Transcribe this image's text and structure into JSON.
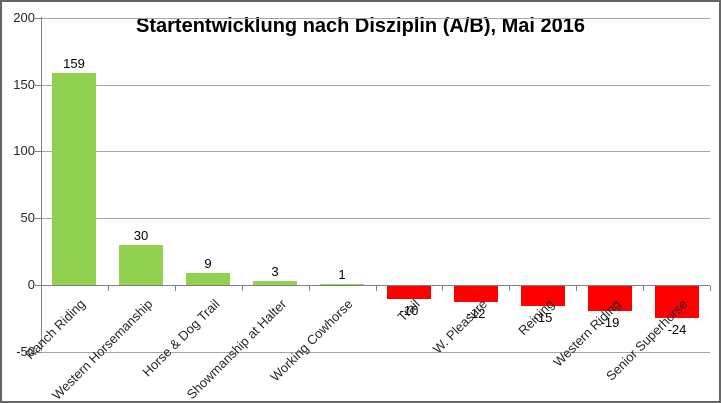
{
  "chart_data": {
    "type": "bar",
    "title": "Startentwicklung nach Disziplin (A/B), Mai 2016",
    "categories": [
      "Ranch Riding",
      "Western Horsemanship",
      "Horse & Dog Trail",
      "Showmanship at Halter",
      "Working Cowhorse",
      "Trail",
      "W. Pleasure",
      "Reining",
      "Western Riding",
      "Senior Superhorse"
    ],
    "values": [
      159,
      30,
      9,
      3,
      1,
      -10,
      -12,
      -15,
      -19,
      -24
    ],
    "data_labels": [
      "159",
      "30",
      "9",
      "3",
      "1",
      "-10",
      "-12",
      "-15",
      "-19",
      "-24"
    ],
    "xlabel": "",
    "ylabel": "",
    "ylim": [
      -50,
      200
    ],
    "yticks": [
      200,
      150,
      100,
      50,
      0,
      -50
    ],
    "grid": "horizontal",
    "legend": "none",
    "category_label_rotation_deg": 45,
    "colors": {
      "bar_positive": "#92D050",
      "bar_negative": "#FF0000",
      "gridline": "#A6A6A6",
      "axis": "#808080",
      "text": "#262626",
      "title": "#000000",
      "border": "#666666",
      "background": "#FFFFFF"
    }
  }
}
